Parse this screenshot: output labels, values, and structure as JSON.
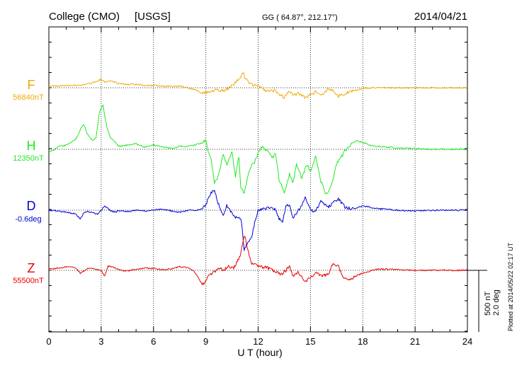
{
  "chart_data": {
    "type": "line",
    "station": "College (CMO)",
    "source": "[USGS]",
    "coords": "GG ( 64.87°, 212.17°)",
    "date": "2014/04/21",
    "xlabel": "U T (hour)",
    "xlim": [
      0,
      24
    ],
    "xticks": [
      "0",
      "3",
      "6",
      "9",
      "12",
      "15",
      "18",
      "21",
      "24"
    ],
    "grid": true,
    "scale": {
      "nt": "500 nT",
      "deg": "2.0 deg"
    },
    "plotted": "Plotted at 2014/05/22 02:17 UT",
    "series": [
      {
        "name": "F",
        "baseline_label": "56840nT",
        "color": "#f0a800",
        "x": [
          0,
          0.5,
          1,
          1.5,
          2,
          2.5,
          2.8,
          3,
          3.2,
          3.5,
          4,
          4.5,
          5,
          5.5,
          6,
          6.5,
          7,
          7.5,
          8,
          8.5,
          8.8,
          9,
          9.3,
          9.6,
          10,
          10.3,
          10.6,
          10.8,
          11,
          11.1,
          11.3,
          11.5,
          12,
          12.5,
          13,
          13.2,
          13.5,
          13.8,
          14,
          14.3,
          14.7,
          15,
          15.3,
          15.6,
          16,
          16.3,
          16.6,
          17,
          17.5,
          18,
          18.5,
          19,
          20,
          21,
          22,
          23,
          24
        ],
        "y": [
          2.2,
          2.5,
          3,
          3.5,
          4.5,
          7,
          9.5,
          12,
          8,
          10,
          6,
          4.5,
          5,
          3,
          3.5,
          2.5,
          2,
          2.5,
          0,
          -4,
          -8,
          -7,
          -5,
          -3,
          -4,
          -1,
          5,
          10,
          16,
          23,
          12,
          6,
          2,
          -5,
          -4,
          -9,
          -13,
          -4,
          -10,
          -8,
          -14,
          -10,
          -6,
          -11,
          -2,
          -4,
          -12,
          -8,
          -4,
          -1,
          0,
          0,
          0,
          0,
          0,
          0,
          0
        ]
      },
      {
        "name": "H",
        "baseline_label": "12350nT",
        "color": "#22e822",
        "x": [
          0,
          0.3,
          0.6,
          1,
          1.3,
          1.6,
          1.8,
          2,
          2.2,
          2.5,
          2.7,
          2.9,
          3,
          3.1,
          3.3,
          3.5,
          3.8,
          4,
          4.5,
          5,
          5.5,
          6,
          6.5,
          7,
          7.5,
          8,
          8.5,
          8.8,
          9,
          9.1,
          9.3,
          9.5,
          9.7,
          10,
          10.2,
          10.5,
          10.7,
          10.9,
          11,
          11.2,
          11.4,
          11.6,
          11.8,
          12,
          12.2,
          12.5,
          12.8,
          13,
          13.2,
          13.5,
          13.8,
          14,
          14.2,
          14.5,
          14.8,
          15,
          15.3,
          15.6,
          15.9,
          16.2,
          16.5,
          16.8,
          17,
          17.3,
          17.6,
          18,
          18.5,
          19,
          19.5,
          20,
          21,
          22,
          23,
          24
        ],
        "y": [
          -4,
          -1,
          4,
          6,
          10,
          16,
          28,
          36,
          22,
          12,
          16,
          52,
          58,
          62,
          34,
          18,
          10,
          4,
          6,
          8,
          3,
          6,
          4,
          1,
          4,
          4,
          7,
          9,
          15,
          -2,
          -12,
          -48,
          -38,
          -8,
          -22,
          -4,
          -38,
          -10,
          -52,
          -62,
          -40,
          -24,
          -18,
          -4,
          4,
          -2,
          -12,
          -6,
          -42,
          -62,
          -35,
          -48,
          -22,
          -40,
          -22,
          -30,
          -10,
          -45,
          -64,
          -52,
          -20,
          -10,
          -2,
          6,
          12,
          10,
          5,
          4,
          3,
          2,
          1,
          0,
          0,
          0
        ]
      },
      {
        "name": "D",
        "baseline_label": "-0.6deg",
        "color": "#0000d8",
        "x": [
          0,
          0.5,
          1,
          1.5,
          1.8,
          2,
          2.2,
          2.5,
          2.8,
          3,
          3.2,
          3.5,
          3.8,
          4,
          4.5,
          5,
          5.5,
          6,
          6.5,
          7,
          7.5,
          8,
          8.5,
          8.8,
          9,
          9.1,
          9.3,
          9.5,
          9.7,
          10,
          10.2,
          10.5,
          10.7,
          10.9,
          11,
          11.1,
          11.2,
          11.4,
          11.6,
          11.8,
          12,
          12.5,
          13,
          13.2,
          13.4,
          13.6,
          13.8,
          14,
          14.2,
          14.5,
          14.7,
          15,
          15.3,
          15.6,
          16,
          16.3,
          16.6,
          17,
          17.5,
          18,
          18.5,
          19,
          20,
          21,
          22,
          23,
          24
        ],
        "y": [
          0,
          -1,
          -3,
          -5,
          -12,
          -4,
          -2,
          -3,
          -6,
          0,
          6,
          0,
          -3,
          -1,
          -2,
          0,
          -1,
          0,
          2,
          -1,
          -3,
          0,
          0,
          2,
          8,
          14,
          24,
          30,
          10,
          -6,
          6,
          -4,
          -10,
          -12,
          -10,
          -30,
          -56,
          -46,
          -40,
          -18,
          0,
          3,
          2,
          -12,
          -18,
          8,
          6,
          -10,
          -4,
          6,
          20,
          0,
          -2,
          14,
          4,
          10,
          16,
          4,
          2,
          6,
          4,
          2,
          0,
          -1,
          0,
          0,
          0
        ]
      },
      {
        "name": "Z",
        "baseline_label": "55500nT",
        "color": "#e80000",
        "x": [
          0,
          0.5,
          1,
          1.5,
          1.8,
          2,
          2.3,
          2.6,
          3,
          3.2,
          3.4,
          3.7,
          4,
          4.5,
          5,
          5.5,
          6,
          6.5,
          7,
          7.5,
          8,
          8.3,
          8.6,
          8.8,
          9,
          9.2,
          9.5,
          9.8,
          10,
          10.3,
          10.6,
          10.8,
          11,
          11.2,
          11.4,
          11.6,
          11.8,
          12,
          12.5,
          13,
          13.3,
          13.6,
          13.8,
          14,
          14.3,
          14.7,
          15,
          15.3,
          15.6,
          16,
          16.3,
          16.6,
          16.9,
          17.2,
          17.6,
          18,
          18.5,
          19,
          20,
          21,
          22,
          23,
          24
        ],
        "y": [
          2,
          3,
          5,
          4,
          -4,
          -1,
          4,
          2,
          0,
          -8,
          6,
          4,
          1,
          -1,
          2,
          3,
          3,
          1,
          2,
          5,
          4,
          0,
          -12,
          -20,
          -16,
          -6,
          -2,
          4,
          0,
          6,
          3,
          12,
          22,
          50,
          30,
          10,
          8,
          6,
          4,
          -2,
          -6,
          0,
          6,
          -8,
          -3,
          -16,
          -10,
          -4,
          -8,
          -6,
          10,
          6,
          -12,
          -14,
          -8,
          -4,
          0,
          2,
          1,
          0,
          0,
          0,
          0
        ]
      }
    ]
  }
}
